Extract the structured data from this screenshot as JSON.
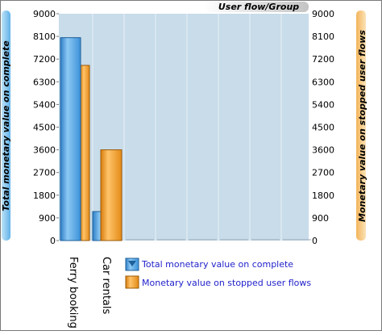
{
  "chart_data": {
    "type": "bar",
    "title": "User flow/Group",
    "categories": [
      "Ferry booking",
      "Car rentals"
    ],
    "series": [
      {
        "name": "Total monetary value on complete",
        "values": [
          8050,
          1150
        ],
        "axis": "left"
      },
      {
        "name": "Monetary value on stopped user flows",
        "values": [
          6950,
          3600
        ],
        "axis": "right"
      }
    ],
    "ylabel": "Total monetary value on complete",
    "y2label": "Monetary value on stopped user flows",
    "ylim": [
      0,
      9000
    ],
    "y2lim": [
      0,
      9000
    ],
    "yticks": [
      0,
      900,
      1800,
      2700,
      3600,
      4500,
      5400,
      6300,
      7200,
      8100,
      9000
    ],
    "grid": true,
    "legend": "bottom-right",
    "colors": {
      "series1": "#4aa6e6",
      "series2": "#f09a22",
      "plot_bg": "#c8dcea",
      "grid": "#e6eef5"
    }
  }
}
